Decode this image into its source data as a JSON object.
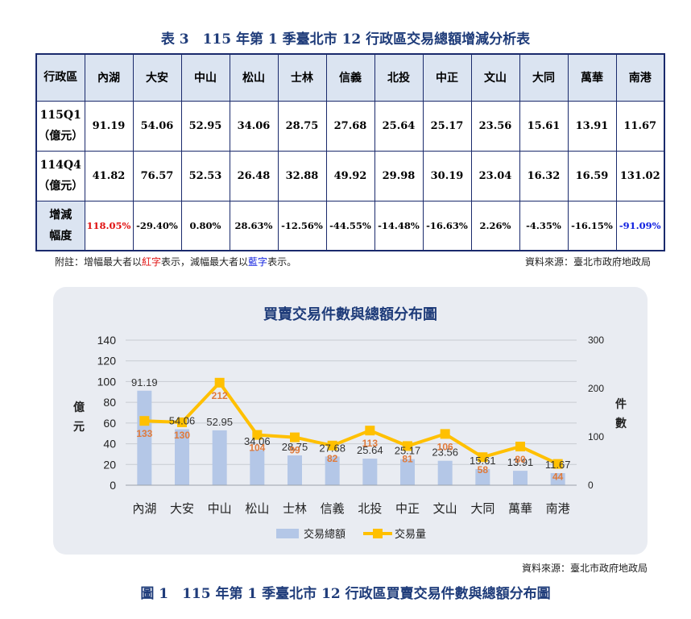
{
  "table_title": "表 3　115 年第 1 季臺北市 12 行政區交易總額增減分析表",
  "table": {
    "corner": "行政區",
    "districts": [
      "內湖",
      "大安",
      "中山",
      "松山",
      "士林",
      "信義",
      "北投",
      "中正",
      "文山",
      "大同",
      "萬華",
      "南港"
    ],
    "rows": [
      {
        "label_l1": "115Q1",
        "label_l2": "（億元）",
        "values": [
          "91.19",
          "54.06",
          "52.95",
          "34.06",
          "28.75",
          "27.68",
          "25.64",
          "25.17",
          "23.56",
          "15.61",
          "13.91",
          "11.67"
        ]
      },
      {
        "label_l1": "114Q4",
        "label_l2": "（億元）",
        "values": [
          "41.82",
          "76.57",
          "52.53",
          "26.48",
          "32.88",
          "49.92",
          "29.98",
          "30.19",
          "23.04",
          "16.32",
          "16.59",
          "131.02"
        ]
      },
      {
        "label_l1": "增減",
        "label_l2": "幅度",
        "values": [
          "118.05%",
          "-29.40%",
          "0.80%",
          "28.63%",
          "-12.56%",
          "-44.55%",
          "-14.48%",
          "-16.63%",
          "2.26%",
          "-4.35%",
          "-16.15%",
          "-91.09%"
        ]
      }
    ],
    "highlight_colors": {
      "max_increase": "#e01010",
      "max_decrease": "#1020e0"
    }
  },
  "notes": {
    "prefix": "附註：增幅最大者以",
    "red_word": "紅字",
    "middle": "表示，減幅最大者以",
    "blue_word": "藍字",
    "suffix": "表示。",
    "source": "資料來源：臺北市政府地政局"
  },
  "chart_data": {
    "type": "bar",
    "title": "買賣交易件數與總額分布圖",
    "categories": [
      "內湖",
      "大安",
      "中山",
      "松山",
      "士林",
      "信義",
      "北投",
      "中正",
      "文山",
      "大同",
      "萬華",
      "南港"
    ],
    "ylabel_left": "億元",
    "ylabel_right": "件數",
    "ylim_left": [
      0,
      140
    ],
    "yticks_left": [
      0,
      20,
      40,
      60,
      80,
      100,
      120,
      140
    ],
    "ylim_right": [
      0,
      300
    ],
    "yticks_right": [
      0,
      100,
      200,
      300
    ],
    "series": [
      {
        "name": "交易總額",
        "type": "bar",
        "axis": "left",
        "color": "#b4c7e7",
        "values": [
          91.19,
          54.06,
          52.95,
          34.06,
          28.75,
          27.68,
          25.64,
          25.17,
          23.56,
          15.61,
          13.91,
          11.67
        ]
      },
      {
        "name": "交易量",
        "type": "line",
        "axis": "right",
        "color": "#ffc000",
        "values": [
          133,
          130,
          212,
          104,
          99,
          82,
          113,
          81,
          106,
          58,
          80,
          44
        ]
      }
    ],
    "grid": true,
    "legend_placement": "bottom"
  },
  "source2": "資料來源：臺北市政府地政局",
  "fig_title": "圖 1　115 年第 1 季臺北市 12 行政區買賣交易件數與總額分布圖"
}
